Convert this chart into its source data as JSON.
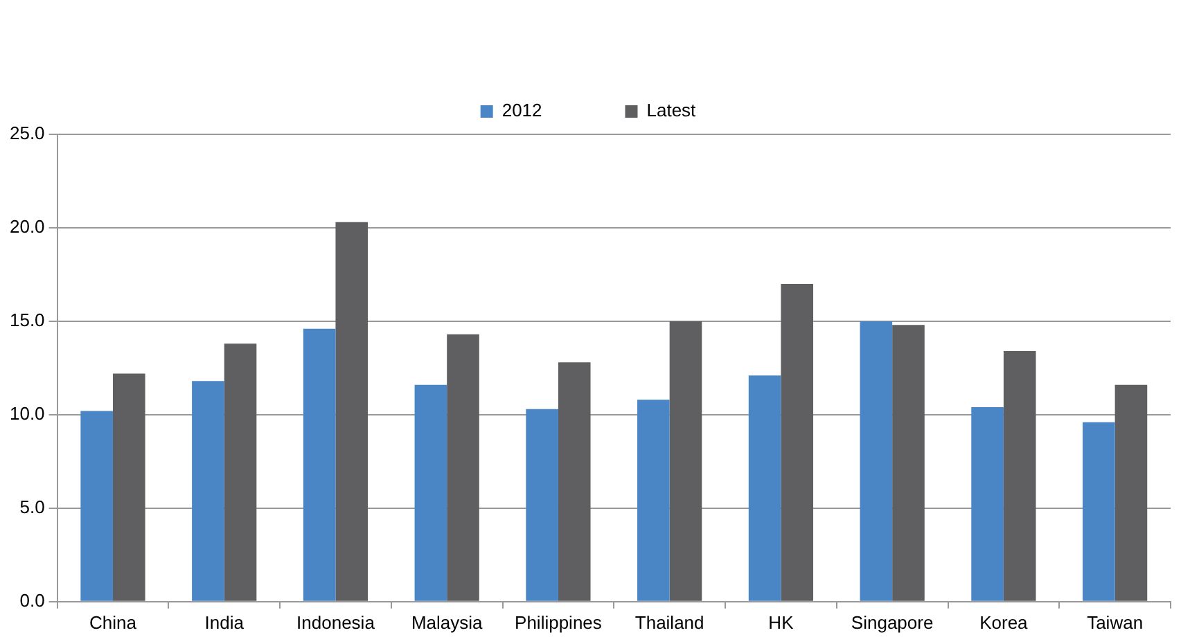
{
  "chart_data": {
    "type": "bar",
    "categories": [
      "China",
      "India",
      "Indonesia",
      "Malaysia",
      "Philippines",
      "Thailand",
      "HK",
      "Singapore",
      "Korea",
      "Taiwan"
    ],
    "series": [
      {
        "name": "2012",
        "color": "#4a86c5",
        "values": [
          10.2,
          11.8,
          14.6,
          11.6,
          10.3,
          10.8,
          12.1,
          15.0,
          10.4,
          9.6
        ]
      },
      {
        "name": "Latest",
        "color": "#5f5f61",
        "values": [
          12.2,
          13.8,
          20.3,
          14.3,
          12.8,
          15.0,
          17.0,
          14.8,
          13.4,
          11.6
        ]
      }
    ],
    "ylim": [
      0,
      25
    ],
    "yticks": [
      {
        "value": 0,
        "label": "0.0"
      },
      {
        "value": 5,
        "label": "5.0"
      },
      {
        "value": 10,
        "label": "10.0"
      },
      {
        "value": 15,
        "label": "15.0"
      },
      {
        "value": 20,
        "label": "20.0"
      },
      {
        "value": 25,
        "label": "25.0"
      }
    ],
    "grid": "y",
    "legend": "top"
  }
}
